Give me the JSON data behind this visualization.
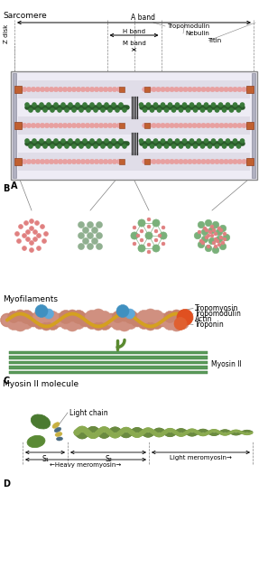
{
  "title_A": "Sarcomere",
  "title_C": "Myofilaments",
  "title_D": "Myosin II molecule",
  "label_A_band": "A band",
  "label_H_band": "H band",
  "label_M_band": "M band",
  "label_Z_disk": "Z disk",
  "label_Tropomodulin": "Tropomodulin",
  "label_Nebulin": "Nebulin",
  "label_Titin": "Titin",
  "label_Tropomyosin": "Tropomyosin",
  "label_Tropomodulin_C": "Tropomodulin",
  "label_Actin": "Actin",
  "label_Troponin": "Troponin",
  "label_MyosinII": "Myosin II",
  "label_LightChain": "Light chain",
  "label_S1": "S₁",
  "label_S2": "S₂",
  "label_LightMeromyosin": "Light meromyosin→",
  "label_HeavyMeromyosin": "←Heavy meromyosin→",
  "color_actin_pink": "#e8a0a0",
  "color_actin_border": "#c07070",
  "color_myosin_green": "#3a7a3a",
  "color_myosin_dark": "#1a3a1a",
  "color_tropomodulin": "#e05020",
  "color_troponin": "#4090c0",
  "color_tropomyosin": "#d4a020",
  "color_zdisk": "#a0a0b8",
  "color_box_bg": "#f0eef8",
  "color_box_border": "#888888",
  "color_mband": "#404040",
  "color_actin_strand": "#c8836e",
  "color_myosin_head_green": "#5a8a30",
  "color_lm_green": "#7aaa40",
  "color_tail_green1": "#8aaa50",
  "color_tail_green2": "#6a8a40",
  "color_lc_yellow": "#c8b040",
  "color_lc_blue": "#4a6a80",
  "color_orange_sq": "#c06030"
}
